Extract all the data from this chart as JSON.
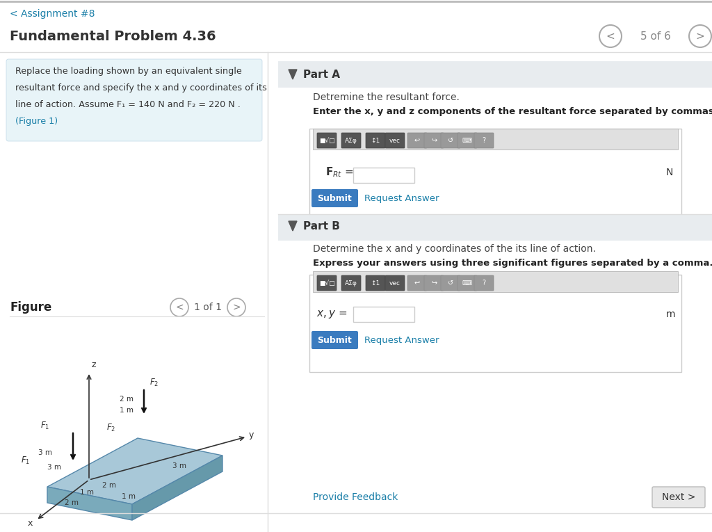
{
  "bg_color": "#ffffff",
  "header_line_color": "#cccccc",
  "back_link_color": "#1a7fa8",
  "back_link_text": "< Assignment #8",
  "title_text": "Fundamental Problem 4.36",
  "title_color": "#333333",
  "nav_text": "5 of 6",
  "nav_color": "#888888",
  "problem_box_bg": "#e8f4f8",
  "problem_text_line1": "Replace the loading shown by an equivalent single",
  "problem_text_line2": "resultant force and specify the x and y coordinates of its",
  "problem_text_line3": "line of action. Assume F₁ = 140 N and F₂ = 220 N .",
  "problem_text_line4": "(Figure 1)",
  "figure_label": "Figure",
  "figure_nav": "1 of 1",
  "part_a_title": "Part A",
  "part_a_desc": "Detremine the resultant force.",
  "part_a_bold": "Enter the x, y and z components of the resultant force separated by commas.",
  "part_b_title": "Part B",
  "part_b_desc": "Determine the x and y coordinates of the its line of action.",
  "part_b_bold": "Express your answers using three significant figures separated by a comma.",
  "unit_n": "N",
  "unit_m": "m",
  "submit_color": "#3a7bbf",
  "submit_text": "Submit",
  "request_color": "#1a7fa8",
  "request_text": "Request Answer",
  "feedback_text": "Provide Feedback",
  "next_text": "Next >",
  "divider_color": "#dddddd",
  "input_bg": "#ffffff",
  "input_border": "#cccccc",
  "section_header_bg": "#e8ecef",
  "next_btn_bg": "#e8e8e8",
  "next_btn_border": "#bbbbbb",
  "platform_top_color": "#a8c8d8",
  "platform_front_color": "#7aaabb",
  "platform_right_color": "#6699aa",
  "platform_edge_color": "#5588aa"
}
